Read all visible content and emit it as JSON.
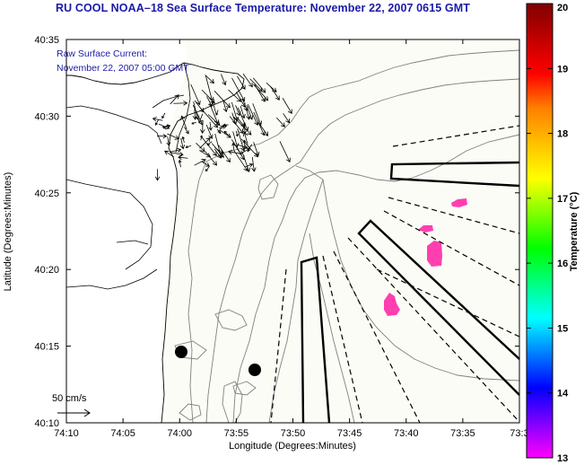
{
  "header": {
    "title": "RU COOL  NOAA–18  Sea Surface Temperature:  November 22, 2007 0615 GMT"
  },
  "current_label": {
    "line1": "Raw Surface Current:",
    "line2": "November 22, 2007 05:00 GMT"
  },
  "scale": {
    "label": "50 cm/s"
  },
  "axes": {
    "xlabel": "Longitude (Degrees:Minutes)",
    "ylabel": "Latitude (Degrees:Minutes)",
    "xticks": [
      "74:10",
      "74:05",
      "74:00",
      "73:55",
      "73:50",
      "73:45",
      "73:40",
      "73:35",
      "73:3"
    ],
    "yticks": [
      "40:35",
      "40:30",
      "40:25",
      "40:20",
      "40:15",
      "40:10"
    ]
  },
  "colorbar": {
    "label": "Temperature (°C)",
    "ticks": [
      "20",
      "19",
      "18",
      "17",
      "16",
      "15",
      "14",
      "13"
    ],
    "min": 13,
    "max": 20,
    "colors": [
      "#ff00ff",
      "#7f00ff",
      "#0000ff",
      "#0080ff",
      "#00ffff",
      "#00ff80",
      "#00ff00",
      "#80ff00",
      "#ffff00",
      "#ffc000",
      "#ff8000",
      "#ff0000",
      "#c00000",
      "#800000"
    ]
  },
  "map": {
    "background": "#fcfcf6",
    "patch_color": "#ff3fb0",
    "contour_color": "#808080"
  }
}
